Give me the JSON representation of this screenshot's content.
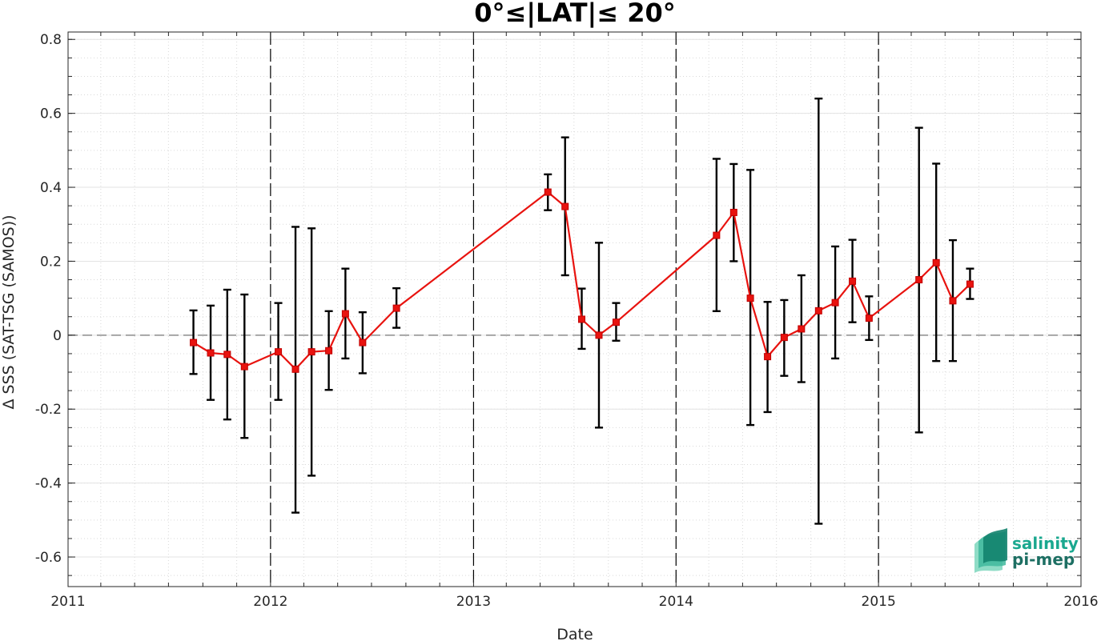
{
  "chart_data": {
    "type": "line",
    "title": "0°≤|LAT|≤ 20°",
    "xlabel": "Date",
    "ylabel": "Δ SSS (SAT-TSG (SAMOS))",
    "xlim": [
      "2011-01-01",
      "2016-01-01"
    ],
    "ylim": [
      -0.68,
      0.82
    ],
    "x_ticks": [
      "2011",
      "2012",
      "2013",
      "2014",
      "2015",
      "2016"
    ],
    "y_ticks": [
      -0.6,
      -0.4,
      -0.2,
      0,
      0.2,
      0.4,
      0.6,
      0.8
    ],
    "y_tick_labels": [
      "-0.6",
      "-0.4",
      "-0.2",
      "0",
      "0.2",
      "0.4",
      "0.6",
      "0.8"
    ],
    "grid": true,
    "year_dividers": [
      "2012",
      "2013",
      "2014",
      "2015"
    ],
    "zero_line": 0,
    "colors": {
      "series": "#e8130f",
      "errorbar": "#000000",
      "zero_line": "#8c8c8c",
      "logo": "#1aa88f"
    },
    "series": [
      {
        "x": [
          "2011-08-15",
          "2011-09-15",
          "2011-10-15",
          "2011-11-15",
          "2012-01-15",
          "2012-02-15",
          "2012-03-15",
          "2012-04-15",
          "2012-05-15",
          "2012-06-15",
          "2012-08-15",
          "2013-05-15",
          "2013-06-15",
          "2013-07-15",
          "2013-08-15",
          "2013-09-15",
          "2014-03-15",
          "2014-04-15",
          "2014-05-15",
          "2014-06-15",
          "2014-07-15",
          "2014-08-15",
          "2014-09-15",
          "2014-10-15",
          "2014-11-15",
          "2014-12-15",
          "2015-03-15",
          "2015-04-15",
          "2015-05-15",
          "2015-06-15"
        ],
        "y": [
          -0.02,
          -0.048,
          -0.052,
          -0.085,
          -0.045,
          -0.092,
          -0.045,
          -0.042,
          0.058,
          -0.02,
          0.073,
          0.387,
          0.348,
          0.043,
          0.0,
          0.035,
          0.27,
          0.332,
          0.1,
          -0.058,
          -0.006,
          0.017,
          0.066,
          0.088,
          0.146,
          0.046,
          0.15,
          0.196,
          0.093,
          0.138
        ],
        "err_low": [
          -0.105,
          -0.175,
          -0.228,
          -0.278,
          -0.175,
          -0.48,
          -0.38,
          -0.148,
          -0.063,
          -0.103,
          0.02,
          0.338,
          0.162,
          -0.037,
          -0.25,
          -0.015,
          0.065,
          0.2,
          -0.243,
          -0.208,
          -0.11,
          -0.127,
          -0.51,
          -0.063,
          0.035,
          -0.013,
          -0.263,
          -0.07,
          -0.07,
          0.098
        ],
        "err_high": [
          0.067,
          0.08,
          0.123,
          0.11,
          0.087,
          0.293,
          0.289,
          0.065,
          0.18,
          0.062,
          0.127,
          0.435,
          0.535,
          0.126,
          0.25,
          0.087,
          0.477,
          0.463,
          0.447,
          0.09,
          0.095,
          0.162,
          0.64,
          0.24,
          0.258,
          0.105,
          0.561,
          0.464,
          0.257,
          0.18
        ]
      }
    ]
  },
  "logo": {
    "line1": "salinity",
    "line2": "pi-mep"
  }
}
